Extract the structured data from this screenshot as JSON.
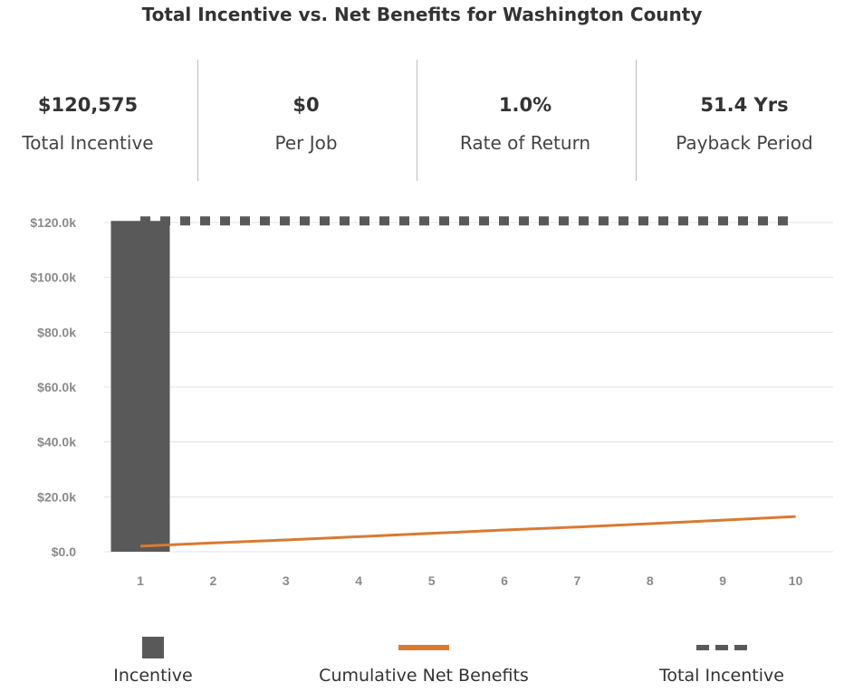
{
  "title": "Total Incentive vs. Net Benefits for Washington County",
  "stats": [
    {
      "value": "$120,575",
      "label": "Total Incentive"
    },
    {
      "value": "$0",
      "label": "Per Job"
    },
    {
      "value": "1.0%",
      "label": "Rate of Return"
    },
    {
      "value": "51.4 Yrs",
      "label": "Payback Period"
    }
  ],
  "colors": {
    "incentive": "#595959",
    "net_benefits": "#d97a30",
    "total_incentive": "#595959",
    "grid": "#e3e3e3",
    "tick": "#8a8a8a"
  },
  "chart_data": {
    "type": "bar",
    "categories": [
      "1",
      "2",
      "3",
      "4",
      "5",
      "6",
      "7",
      "8",
      "9",
      "10"
    ],
    "series": [
      {
        "name": "Incentive",
        "type": "bar",
        "values": [
          120575,
          0,
          0,
          0,
          0,
          0,
          0,
          0,
          0,
          0
        ]
      },
      {
        "name": "Cumulative Net Benefits",
        "type": "line",
        "values": [
          2000,
          3200,
          4300,
          5500,
          6700,
          7900,
          9000,
          10200,
          11500,
          12800
        ]
      },
      {
        "name": "Total Incentive",
        "type": "line",
        "style": "dashed",
        "values": [
          120575,
          120575,
          120575,
          120575,
          120575,
          120575,
          120575,
          120575,
          120575,
          120575
        ]
      }
    ],
    "ylim": [
      0,
      120000
    ],
    "yticks": [
      0,
      20000,
      40000,
      60000,
      80000,
      100000,
      120000
    ],
    "ytick_labels": [
      "$0.0",
      "$20.0k",
      "$40.0k",
      "$60.0k",
      "$80.0k",
      "$100.0k",
      "$120.0k"
    ],
    "grid": true,
    "legend_position": "bottom"
  },
  "legend": [
    {
      "label": "Incentive",
      "icon": "square"
    },
    {
      "label": "Cumulative Net Benefits",
      "icon": "solid-line"
    },
    {
      "label": "Total Incentive",
      "icon": "dashed-line"
    }
  ]
}
